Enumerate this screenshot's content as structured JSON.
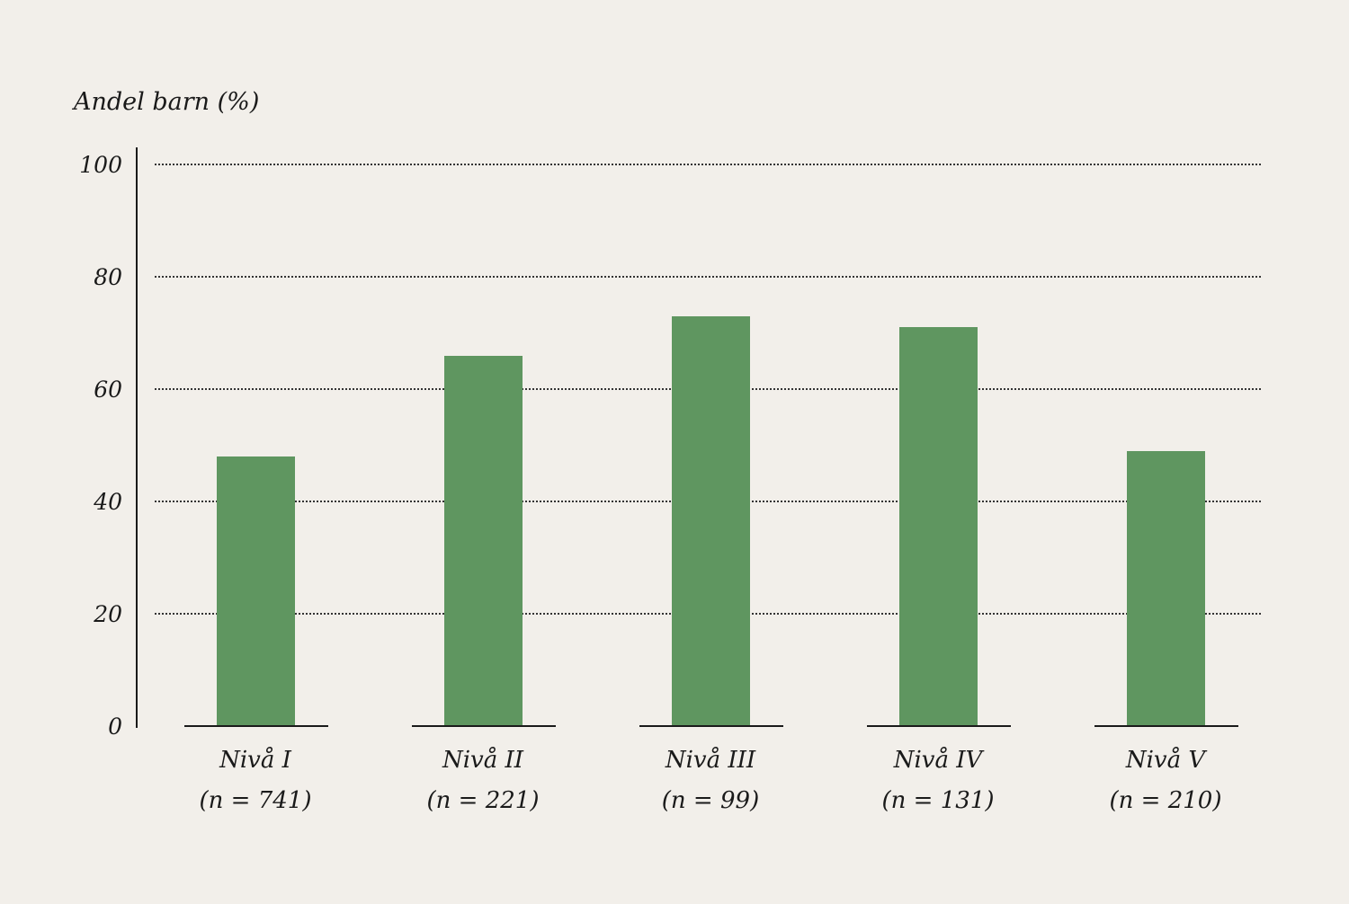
{
  "chart_data": {
    "type": "bar",
    "title": "",
    "xlabel": "",
    "ylabel": "Andel barn (%)",
    "ylim": [
      0,
      100
    ],
    "yticks": [
      "0",
      "20",
      "40",
      "60",
      "80",
      "100"
    ],
    "grid": true,
    "categories": [
      "Nivå I",
      "Nivå II",
      "Nivå III",
      "Nivå IV",
      "Nivå V"
    ],
    "sample_sizes": [
      "(n = 741)",
      "(n = 221)",
      "(n = 99)",
      "(n = 131)",
      "(n = 210)"
    ],
    "values": [
      48,
      66,
      73,
      71,
      49
    ],
    "bar_color": "#5f9660"
  }
}
